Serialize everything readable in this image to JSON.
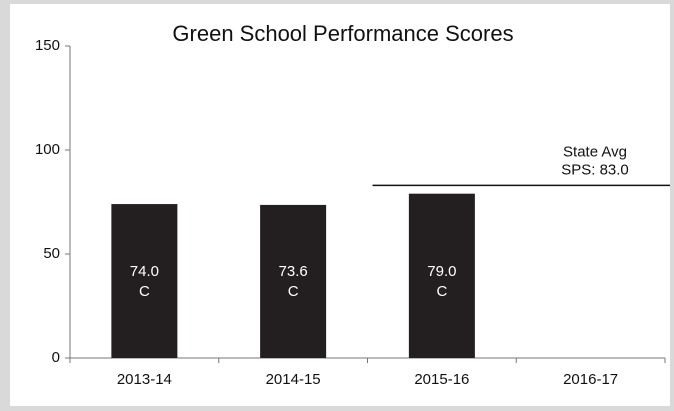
{
  "chart_data": {
    "type": "bar",
    "title": "Green School Performance Scores",
    "categories": [
      "2013-14",
      "2014-15",
      "2015-16",
      "2016-17"
    ],
    "values": [
      74.0,
      73.6,
      79.0,
      null
    ],
    "value_labels": [
      "74.0",
      "73.6",
      "79.0",
      null
    ],
    "grades": [
      "C",
      "C",
      "C",
      null
    ],
    "color": "#231f20",
    "ylim": [
      0,
      150
    ],
    "yticks": [
      0,
      50,
      100,
      150
    ],
    "reference_line": {
      "value": 83.0,
      "label": [
        "State Avg",
        "SPS: 83.0"
      ]
    }
  }
}
